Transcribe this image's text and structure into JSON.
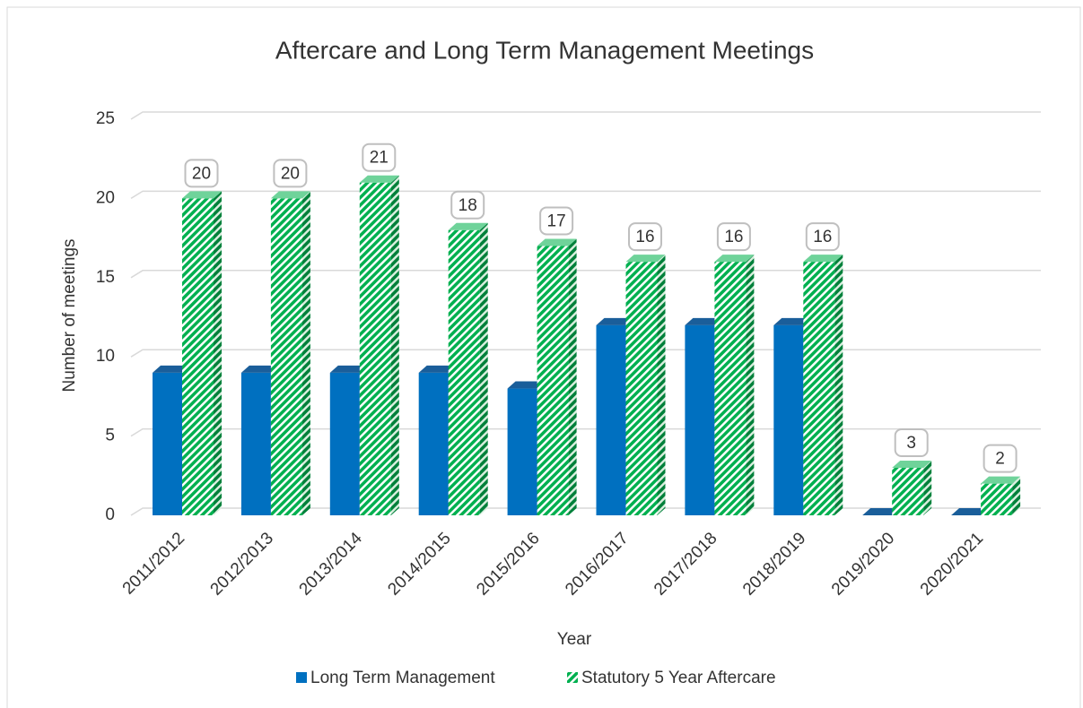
{
  "chart_data": {
    "type": "bar3d",
    "title": "Aftercare and Long Term Management Meetings",
    "x_label": "Year",
    "y_label": "Number of meetings",
    "categories": [
      "2011/2012",
      "2012/2013",
      "2013/2014",
      "2014/2015",
      "2015/2016",
      "2016/2017",
      "2017/2018",
      "2018/2019",
      "2019/2020",
      "2020/2021"
    ],
    "series": [
      {
        "name": "Long Term Management",
        "color": "#0070c0",
        "values": [
          9,
          9,
          9,
          9,
          8,
          12,
          12,
          12,
          0,
          0
        ]
      },
      {
        "name": "Statutory 5 Year Aftercare",
        "color": "#00b050",
        "values": [
          20,
          20,
          21,
          18,
          17,
          16,
          16,
          16,
          3,
          2
        ],
        "data_labels": true
      }
    ],
    "ylim": [
      0,
      25
    ],
    "yticks": [
      0,
      5,
      10,
      15,
      20,
      25
    ],
    "grid": true,
    "legend": "bottom"
  }
}
